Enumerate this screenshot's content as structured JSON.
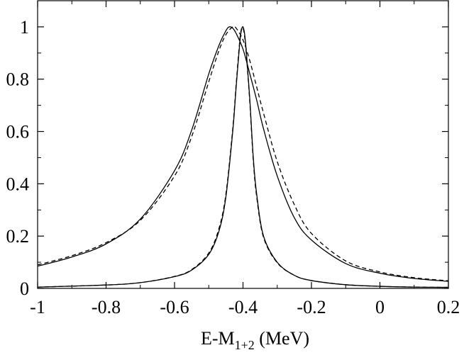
{
  "chart_data": {
    "type": "line",
    "xlabel": {
      "main": "E-M",
      "sub": "1+2",
      "unit": " (MeV)"
    },
    "ylabel": "",
    "xlim": [
      -1.0,
      0.2
    ],
    "ylim": [
      0.0,
      1.1
    ],
    "grid": false,
    "legend": "none",
    "x_ticks": [
      -1.0,
      -0.8,
      -0.6,
      -0.4,
      -0.2,
      0.0,
      0.2
    ],
    "x_tick_labels": [
      "-1",
      "-0.8",
      "-0.6",
      "-0.4",
      "-0.2",
      "0",
      "0.2"
    ],
    "y_ticks": [
      0.0,
      0.2,
      0.4,
      0.6,
      0.8,
      1.0
    ],
    "y_tick_labels": [
      "0",
      "0.2",
      "0.4",
      "0.6",
      "0.8",
      "1"
    ],
    "series": [
      {
        "style": "solid",
        "color": "#000000",
        "x": [
          -1.0,
          -0.9,
          -0.8,
          -0.7,
          -0.6,
          -0.55,
          -0.5,
          -0.47,
          -0.45,
          -0.44,
          -0.43,
          -0.42,
          -0.4,
          -0.38,
          -0.36,
          -0.34,
          -0.3,
          -0.25,
          -0.2,
          -0.1,
          0.0,
          0.1,
          0.2
        ],
        "y": [
          0.085,
          0.12,
          0.17,
          0.265,
          0.45,
          0.605,
          0.82,
          0.93,
          0.985,
          1.0,
          0.995,
          0.975,
          0.915,
          0.82,
          0.72,
          0.61,
          0.43,
          0.27,
          0.185,
          0.095,
          0.058,
          0.038,
          0.027
        ]
      },
      {
        "style": "dashed",
        "color": "#000000",
        "x": [
          -1.0,
          -0.9,
          -0.8,
          -0.7,
          -0.6,
          -0.55,
          -0.5,
          -0.47,
          -0.45,
          -0.43,
          -0.42,
          -0.4,
          -0.38,
          -0.36,
          -0.34,
          -0.3,
          -0.25,
          -0.2,
          -0.1,
          0.0,
          0.1,
          0.2
        ],
        "y": [
          0.09,
          0.125,
          0.175,
          0.26,
          0.43,
          0.58,
          0.79,
          0.91,
          0.97,
          1.0,
          0.995,
          0.95,
          0.87,
          0.77,
          0.67,
          0.485,
          0.32,
          0.21,
          0.105,
          0.063,
          0.041,
          0.029
        ]
      },
      {
        "style": "solid",
        "color": "#000000",
        "x": [
          -1.0,
          -0.8,
          -0.7,
          -0.6,
          -0.55,
          -0.5,
          -0.47,
          -0.45,
          -0.43,
          -0.42,
          -0.41,
          -0.405,
          -0.4,
          -0.395,
          -0.39,
          -0.38,
          -0.37,
          -0.36,
          -0.34,
          -0.3,
          -0.25,
          -0.2,
          -0.1,
          0.0,
          0.1,
          0.2
        ],
        "y": [
          0.005,
          0.013,
          0.022,
          0.045,
          0.07,
          0.13,
          0.22,
          0.35,
          0.6,
          0.77,
          0.93,
          0.985,
          1.0,
          0.97,
          0.9,
          0.72,
          0.5,
          0.36,
          0.2,
          0.1,
          0.05,
          0.03,
          0.014,
          0.008,
          0.005,
          0.004
        ]
      },
      {
        "style": "dashed",
        "color": "#000000",
        "x": [
          -1.0,
          -0.8,
          -0.7,
          -0.6,
          -0.55,
          -0.5,
          -0.47,
          -0.45,
          -0.43,
          -0.42,
          -0.41,
          -0.405,
          -0.4,
          -0.395,
          -0.39,
          -0.38,
          -0.37,
          -0.36,
          -0.34,
          -0.3,
          -0.25,
          -0.2,
          -0.1,
          0.0,
          0.1,
          0.2
        ],
        "y": [
          0.005,
          0.013,
          0.022,
          0.046,
          0.072,
          0.135,
          0.23,
          0.36,
          0.61,
          0.78,
          0.94,
          0.99,
          0.995,
          0.96,
          0.89,
          0.71,
          0.49,
          0.35,
          0.195,
          0.098,
          0.05,
          0.03,
          0.014,
          0.008,
          0.005,
          0.004
        ]
      }
    ]
  }
}
